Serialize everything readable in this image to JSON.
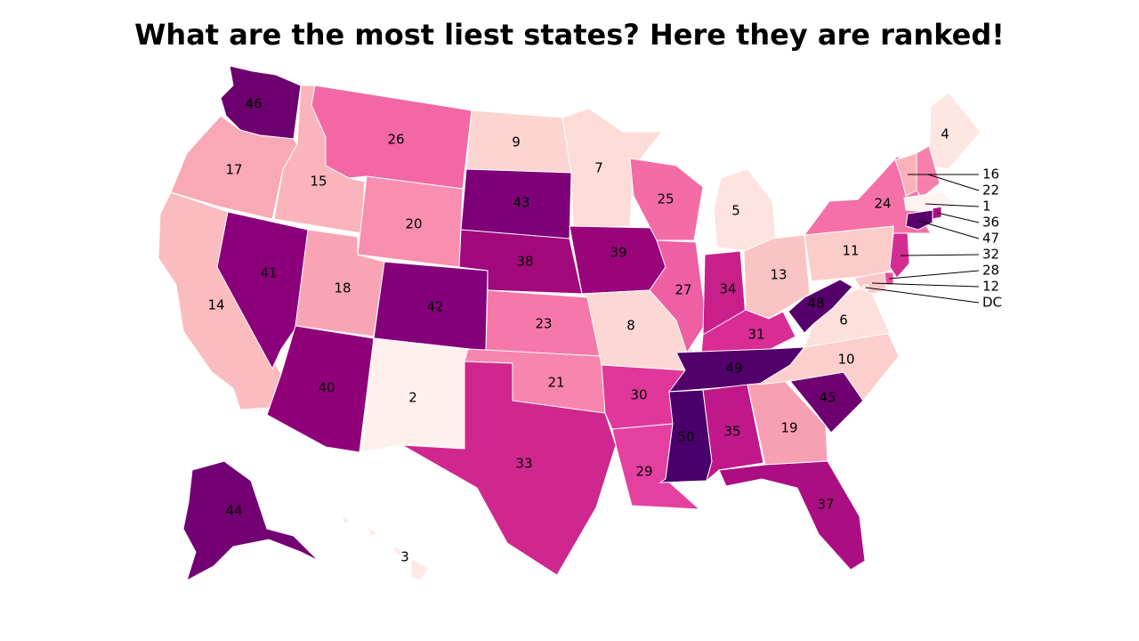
{
  "title": "What are the most liest states? Here they are ranked!",
  "color_scale": {
    "low": "#fff0ee",
    "stops": [
      "#fff0ee",
      "#fcd3d0",
      "#f9a8b5",
      "#f56aa6",
      "#d4268f",
      "#a2097c",
      "#6d006e",
      "#4a006a"
    ],
    "high": "#4a006a"
  },
  "states": [
    {
      "code": "WA",
      "rank": 46,
      "color": "#6d006e"
    },
    {
      "code": "OR",
      "rank": 17,
      "color": "#f9a8b5"
    },
    {
      "code": "CA",
      "rank": 14,
      "color": "#fbbcbf"
    },
    {
      "code": "NV",
      "rank": 41,
      "color": "#8b007a"
    },
    {
      "code": "ID",
      "rank": 15,
      "color": "#fbb4bb"
    },
    {
      "code": "MT",
      "rank": 26,
      "color": "#f267a4"
    },
    {
      "code": "WY",
      "rank": 20,
      "color": "#f88fb0"
    },
    {
      "code": "UT",
      "rank": 18,
      "color": "#f9a4b4"
    },
    {
      "code": "AZ",
      "rank": 40,
      "color": "#900079"
    },
    {
      "code": "CO",
      "rank": 42,
      "color": "#83007a"
    },
    {
      "code": "NM",
      "rank": 2,
      "color": "#fff0ee"
    },
    {
      "code": "ND",
      "rank": 9,
      "color": "#fcd4d0"
    },
    {
      "code": "SD",
      "rank": 43,
      "color": "#7d0078"
    },
    {
      "code": "NE",
      "rank": 38,
      "color": "#a2097c"
    },
    {
      "code": "KS",
      "rank": 23,
      "color": "#f678a9"
    },
    {
      "code": "OK",
      "rank": 21,
      "color": "#f785ad"
    },
    {
      "code": "TX",
      "rank": 33,
      "color": "#d0278f"
    },
    {
      "code": "MN",
      "rank": 7,
      "color": "#fddbd7"
    },
    {
      "code": "IA",
      "rank": 39,
      "color": "#99047b"
    },
    {
      "code": "MO",
      "rank": 8,
      "color": "#fdd7d3"
    },
    {
      "code": "AR",
      "rank": 30,
      "color": "#e0379a"
    },
    {
      "code": "LA",
      "rank": 29,
      "color": "#e440a0"
    },
    {
      "code": "WI",
      "rank": 25,
      "color": "#f46ca6"
    },
    {
      "code": "IL",
      "rank": 27,
      "color": "#ee5fa3"
    },
    {
      "code": "MI",
      "rank": 5,
      "color": "#fee3e0"
    },
    {
      "code": "IN",
      "rank": 34,
      "color": "#c81f8b"
    },
    {
      "code": "OH",
      "rank": 13,
      "color": "#fbc4c4"
    },
    {
      "code": "KY",
      "rank": 31,
      "color": "#d92c94"
    },
    {
      "code": "TN",
      "rank": 49,
      "color": "#52006a"
    },
    {
      "code": "MS",
      "rank": 50,
      "color": "#4a006a"
    },
    {
      "code": "AL",
      "rank": 35,
      "color": "#c0178a"
    },
    {
      "code": "GA",
      "rank": 19,
      "color": "#f8a0b3"
    },
    {
      "code": "FL",
      "rank": 37,
      "color": "#ac0d82"
    },
    {
      "code": "SC",
      "rank": 45,
      "color": "#6f0070"
    },
    {
      "code": "NC",
      "rank": 10,
      "color": "#fccfcc"
    },
    {
      "code": "VA",
      "rank": 6,
      "color": "#fddfdb"
    },
    {
      "code": "WV",
      "rank": 48,
      "color": "#55006b"
    },
    {
      "code": "PA",
      "rank": 11,
      "color": "#fcccc9"
    },
    {
      "code": "NY",
      "rank": 24,
      "color": "#f570a8"
    },
    {
      "code": "ME",
      "rank": 4,
      "color": "#fee6e3"
    },
    {
      "code": "VT",
      "rank": 16,
      "color": "#fab0b8"
    },
    {
      "code": "NH",
      "rank": 22,
      "color": "#f680ab"
    },
    {
      "code": "MA",
      "rank": 1,
      "color": "#fff3f1"
    },
    {
      "code": "RI",
      "rank": 36,
      "color": "#b0107f"
    },
    {
      "code": "CT",
      "rank": 47,
      "color": "#5a006c"
    },
    {
      "code": "NJ",
      "rank": 32,
      "color": "#d42d91"
    },
    {
      "code": "DE",
      "rank": 28,
      "color": "#e84e9f"
    },
    {
      "code": "MD",
      "rank": 12,
      "color": "#fcc8c7"
    },
    {
      "code": "DC",
      "rank": "DC",
      "color": "#fce0dc"
    },
    {
      "code": "AK",
      "rank": 44,
      "color": "#730073"
    },
    {
      "code": "HI",
      "rank": 3,
      "color": "#fee9e6"
    }
  ]
}
